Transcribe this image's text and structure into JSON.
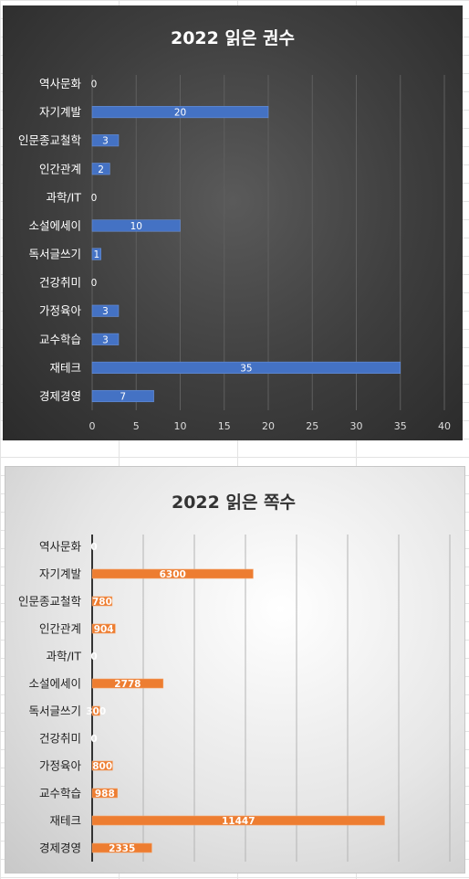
{
  "chart_data": [
    {
      "type": "bar",
      "orientation": "horizontal",
      "title": "2022 읽은 권수",
      "categories": [
        "역사문화",
        "자기계발",
        "인문종교철학",
        "인간관계",
        "과학/IT",
        "소설에세이",
        "독서글쓰기",
        "건강취미",
        "가정육아",
        "교수학습",
        "재테크",
        "경제경영"
      ],
      "values": [
        0,
        20,
        3,
        2,
        0,
        10,
        1,
        0,
        3,
        3,
        35,
        7
      ],
      "xlim": [
        0,
        40
      ],
      "xticks": [
        "0",
        "5",
        "10",
        "15",
        "20",
        "25",
        "30",
        "35",
        "40"
      ],
      "grid": true,
      "legend": "none",
      "bar_color": "#4472c4",
      "background": "dark"
    },
    {
      "type": "bar",
      "orientation": "horizontal",
      "title": "2022 읽은 쪽수",
      "categories": [
        "역사문화",
        "자기계발",
        "인문종교철학",
        "인간관계",
        "과학/IT",
        "소설에세이",
        "독서글쓰기",
        "건강취미",
        "가정육아",
        "교수학습",
        "재테크",
        "경제경영"
      ],
      "values": [
        0,
        6300,
        780,
        904,
        0,
        2778,
        300,
        0,
        800,
        988,
        11447,
        2335
      ],
      "xlim": [
        0,
        14000
      ],
      "grid": true,
      "legend": "none",
      "bar_color": "#ed7d31",
      "background": "light"
    }
  ]
}
